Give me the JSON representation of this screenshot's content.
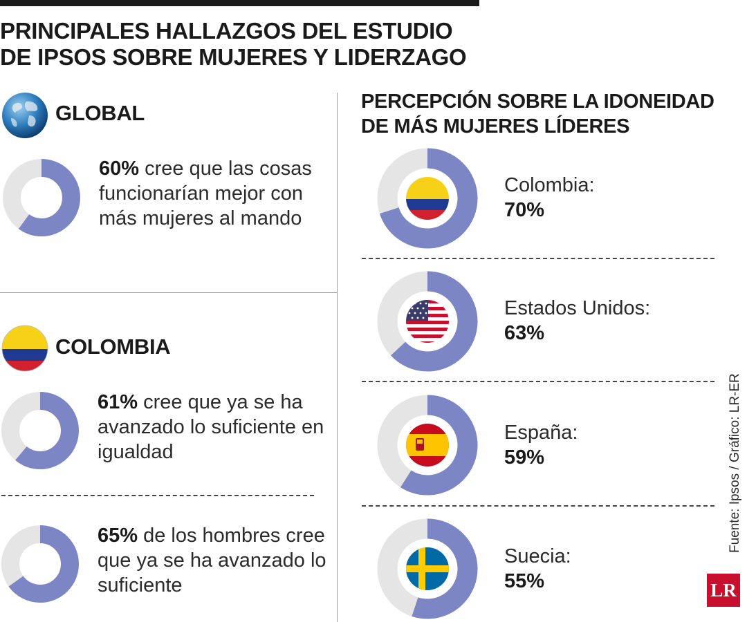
{
  "title_line1": "PRINCIPALES HALLAZGOS DEL ESTUDIO",
  "title_line2": "DE IPSOS SOBRE MUJERES Y LIDERZAGO",
  "global": {
    "heading": "GLOBAL",
    "pct_label": "60%",
    "text": " cree que las cosas funcionarían mejor con más mujeres al mando"
  },
  "colombia": {
    "heading": "COLOMBIA",
    "stat1_pct": "61%",
    "stat1_text": " cree que ya se ha avanzado lo suficiente en igualdad",
    "stat2_pct": "65%",
    "stat2_text": " de los hombres cree que ya se ha avanzado lo suficiente"
  },
  "right": {
    "title_line1": "PERCEPCIÓN SOBRE LA IDONEIDAD",
    "title_line2": "DE MÁS MUJERES LÍDERES"
  },
  "source": "Fuente: Ipsos / Gráfico: LR-ER",
  "logo_text": "LR",
  "colors": {
    "ring_fill": "#7c86c4",
    "ring_track": "#e5e5e5",
    "logo": "#c8102e"
  },
  "chart_data": [
    {
      "type": "pie",
      "style": "donut",
      "categories": [
        "cree que las cosas funcionarían mejor con más mujeres al mando",
        "resto"
      ],
      "values": [
        60,
        40
      ]
    },
    {
      "type": "pie",
      "style": "donut",
      "categories": [
        "cree que ya se ha avanzado lo suficiente en igualdad",
        "resto"
      ],
      "values": [
        61,
        39
      ]
    },
    {
      "type": "pie",
      "style": "donut",
      "categories": [
        "de los hombres cree que ya se ha avanzado lo suficiente",
        "resto"
      ],
      "values": [
        65,
        35
      ]
    },
    {
      "type": "pie",
      "style": "donut",
      "title": "PERCEPCIÓN SOBRE LA IDONEIDAD DE MÁS MUJERES LÍDERES",
      "categories": [
        "Colombia:",
        "Estados Unidos:",
        "España:",
        "Suecia:"
      ],
      "labels": [
        "70%",
        "63%",
        "59%",
        "55%"
      ],
      "values": [
        70,
        63,
        59,
        55
      ],
      "icons": [
        "colombia-flag",
        "usa-flag",
        "spain-flag",
        "sweden-flag"
      ]
    }
  ]
}
